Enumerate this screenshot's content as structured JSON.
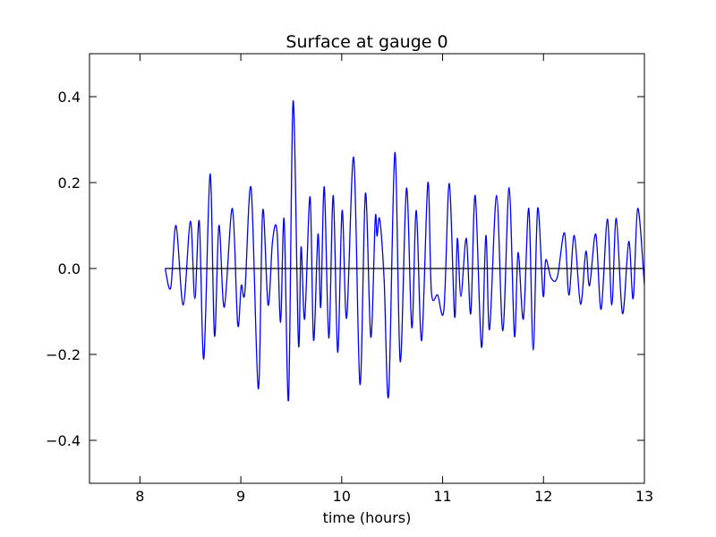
{
  "chart_data": {
    "type": "line",
    "title": "Surface at gauge 0",
    "xlabel": "time (hours)",
    "xlim": [
      7.5,
      13
    ],
    "ylim": [
      -0.5,
      0.5
    ],
    "xticks": [
      8,
      9,
      10,
      11,
      12,
      13
    ],
    "yticks": [
      {
        "value": -0.4,
        "label": "−0.4"
      },
      {
        "value": -0.2,
        "label": "−0.2"
      },
      {
        "value": 0,
        "label": "0.0"
      },
      0.2,
      0.4
    ],
    "series": [
      {
        "color": "#0000ff",
        "x": [
          8.25,
          8.305,
          8.358,
          8.429,
          8.5,
          8.544,
          8.588,
          8.633,
          8.695,
          8.739,
          8.783,
          8.836,
          8.916,
          8.969,
          9.004,
          9.04,
          9.102,
          9.173,
          9.217,
          9.27,
          9.314,
          9.358,
          9.394,
          9.429,
          9.473,
          9.518,
          9.571,
          9.597,
          9.633,
          9.686,
          9.721,
          9.765,
          9.792,
          9.827,
          9.872,
          9.916,
          9.96,
          10.004,
          10.049,
          10.119,
          10.181,
          10.235,
          10.288,
          10.332,
          10.35,
          10.376,
          10.42,
          10.465,
          10.527,
          10.58,
          10.642,
          10.695,
          10.739,
          10.792,
          10.854,
          10.889,
          10.951,
          11.013,
          11.066,
          11.119,
          11.146,
          11.181,
          11.235,
          11.279,
          11.323,
          11.385,
          11.429,
          11.465,
          11.535,
          11.597,
          11.659,
          11.712,
          11.748,
          11.801,
          11.854,
          11.898,
          11.942,
          11.996,
          12.022,
          12.075,
          12.137,
          12.208,
          12.252,
          12.305,
          12.367,
          12.42,
          12.456,
          12.518,
          12.571,
          12.633,
          12.677,
          12.721,
          12.783,
          12.845,
          12.889,
          12.934,
          13.0
        ],
        "values": [
          0,
          -0.045,
          0.1,
          -0.085,
          0.11,
          -0.07,
          0.11,
          -0.21,
          0.22,
          -0.157,
          0.1,
          -0.09,
          0.14,
          -0.13,
          -0.04,
          -0.055,
          0.187,
          -0.28,
          0.135,
          -0.085,
          0.063,
          0.088,
          -0.125,
          0.115,
          -0.305,
          0.39,
          -0.175,
          0.05,
          -0.117,
          0.167,
          -0.167,
          0.08,
          -0.09,
          0.19,
          -0.162,
          0.17,
          -0.195,
          0.135,
          -0.115,
          0.258,
          -0.27,
          0.175,
          -0.16,
          0.115,
          0.075,
          0.115,
          -0.025,
          -0.295,
          0.27,
          -0.217,
          0.187,
          -0.138,
          0.135,
          -0.168,
          0.2,
          -0.055,
          -0.062,
          -0.095,
          0.198,
          -0.112,
          0.07,
          -0.065,
          0.07,
          -0.105,
          0.17,
          -0.183,
          0.077,
          -0.142,
          0.17,
          -0.145,
          0.188,
          -0.157,
          0.037,
          -0.117,
          0.14,
          -0.19,
          0.14,
          -0.063,
          0.02,
          -0.022,
          -0.02,
          0.083,
          -0.062,
          0.077,
          -0.083,
          0.04,
          -0.04,
          0.08,
          -0.095,
          0.115,
          -0.085,
          0.117,
          -0.105,
          0.063,
          -0.07,
          0.14,
          -0.037
        ]
      },
      {
        "color": "#000000",
        "x": [
          8.25,
          13.0
        ],
        "values": [
          0,
          0
        ]
      }
    ]
  }
}
